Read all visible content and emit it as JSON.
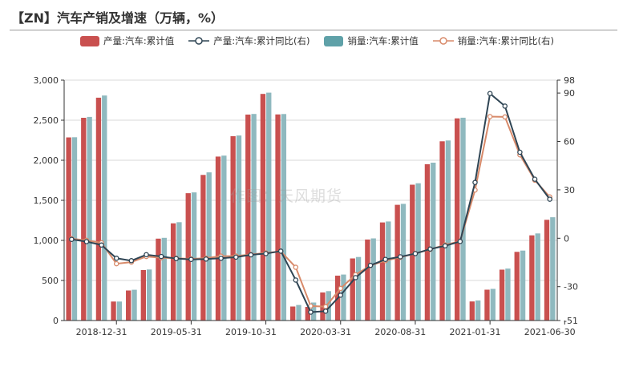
{
  "title": "【ZN】汽车产销及增速（万辆，%）",
  "watermark": "作图：天风期货",
  "colors": {
    "production_bar": "#c9504f",
    "sales_bar": "#8fb9bf",
    "production_line": "#2f4554",
    "sales_line": "#d88a6a",
    "grid": "#d9d9d9",
    "axis": "#333333"
  },
  "legend": [
    {
      "label": "产量:汽车:累计值",
      "kind": "bar",
      "color_key": "production_bar"
    },
    {
      "label": "产量:汽车:累计同比(右)",
      "kind": "line",
      "color_key": "production_line"
    },
    {
      "label": "销量:汽车:累计值",
      "kind": "bar",
      "color_key": "sales_bar"
    },
    {
      "label": "销量:汽车:累计同比(右)",
      "kind": "line",
      "color_key": "sales_line"
    }
  ],
  "chart_data": {
    "type": "bar",
    "title": "【ZN】汽车产销及增速（万辆，%）",
    "x_tick_labels": [
      "2018-12-31",
      "2019-05-31",
      "2019-10-31",
      "2020-03-31",
      "2020-08-31",
      "2021-01-31",
      "2021-06-30"
    ],
    "categories": [
      "2018-10",
      "2018-11",
      "2018-12",
      "2019-01",
      "2019-02",
      "2019-03",
      "2019-04",
      "2019-05",
      "2019-06",
      "2019-07",
      "2019-08",
      "2019-09",
      "2019-10",
      "2019-11",
      "2019-12",
      "2020-01",
      "2020-02",
      "2020-03",
      "2020-04",
      "2020-05",
      "2020-06",
      "2020-07",
      "2020-08",
      "2020-09",
      "2020-10",
      "2020-11",
      "2020-12",
      "2021-01",
      "2021-02",
      "2021-03",
      "2021-04",
      "2021-05",
      "2021-06"
    ],
    "left_axis": {
      "ylim": [
        0,
        3000
      ],
      "ticks": [
        0,
        500,
        1000,
        1500,
        2000,
        2500,
        3000
      ]
    },
    "right_axis": {
      "ylim": [
        -51,
        98
      ],
      "ticks": [
        -51,
        -30,
        0,
        30,
        60,
        90,
        98
      ]
    },
    "series": [
      {
        "name": "产量:汽车:累计值",
        "type": "bar",
        "axis": "left",
        "values": [
          2285,
          2530,
          2781,
          237,
          375,
          630,
          1022,
          1213,
          1589,
          1817,
          2046,
          2301,
          2570,
          2828,
          2572,
          175,
          170,
          350,
          560,
          775,
          1011,
          1224,
          1444,
          1695,
          1951,
          2237,
          2523,
          238,
          385,
          635,
          857,
          1063,
          1257
        ]
      },
      {
        "name": "销量:汽车:累计值",
        "type": "bar",
        "axis": "left",
        "values": [
          2287,
          2541,
          2808,
          237,
          384,
          637,
          1032,
          1227,
          1599,
          1849,
          2058,
          2309,
          2578,
          2844,
          2577,
          194,
          225,
          367,
          574,
          793,
          1025,
          1236,
          1456,
          1713,
          1970,
          2247,
          2531,
          250,
          395,
          648,
          873,
          1087,
          1289
        ]
      },
      {
        "name": "产量:汽车:累计同比(右)",
        "type": "line",
        "axis": "right",
        "values": [
          -0.7,
          -2.1,
          -4.2,
          -12.4,
          -13.9,
          -10.2,
          -11.3,
          -12.6,
          -13.1,
          -12.9,
          -12.4,
          -11.7,
          -10.3,
          -9.5,
          -8,
          -25.9,
          -45.8,
          -45.2,
          -35.3,
          -24.4,
          -16.8,
          -13.1,
          -11.5,
          -9.5,
          -6.7,
          -4.7,
          -2,
          34.6,
          89.7,
          81.9,
          53.3,
          36.6,
          24.2
        ]
      },
      {
        "name": "销量:汽车:累计同比(右)",
        "type": "line",
        "axis": "right",
        "values": [
          -0.3,
          -1.3,
          -2.8,
          -15.8,
          -14.8,
          -11.3,
          -12.1,
          -12.4,
          -12.8,
          -12.3,
          -11.1,
          -11,
          -10.1,
          -9.1,
          -8.2,
          -18,
          -42,
          -42.4,
          -31.1,
          -22.6,
          -16.9,
          -13.9,
          -11.8,
          -9.4,
          -6.9,
          -4.1,
          -1.9,
          29.9,
          75.4,
          75.2,
          51.7,
          36,
          25.6
        ]
      }
    ],
    "legend_position": "top",
    "grid": true
  }
}
